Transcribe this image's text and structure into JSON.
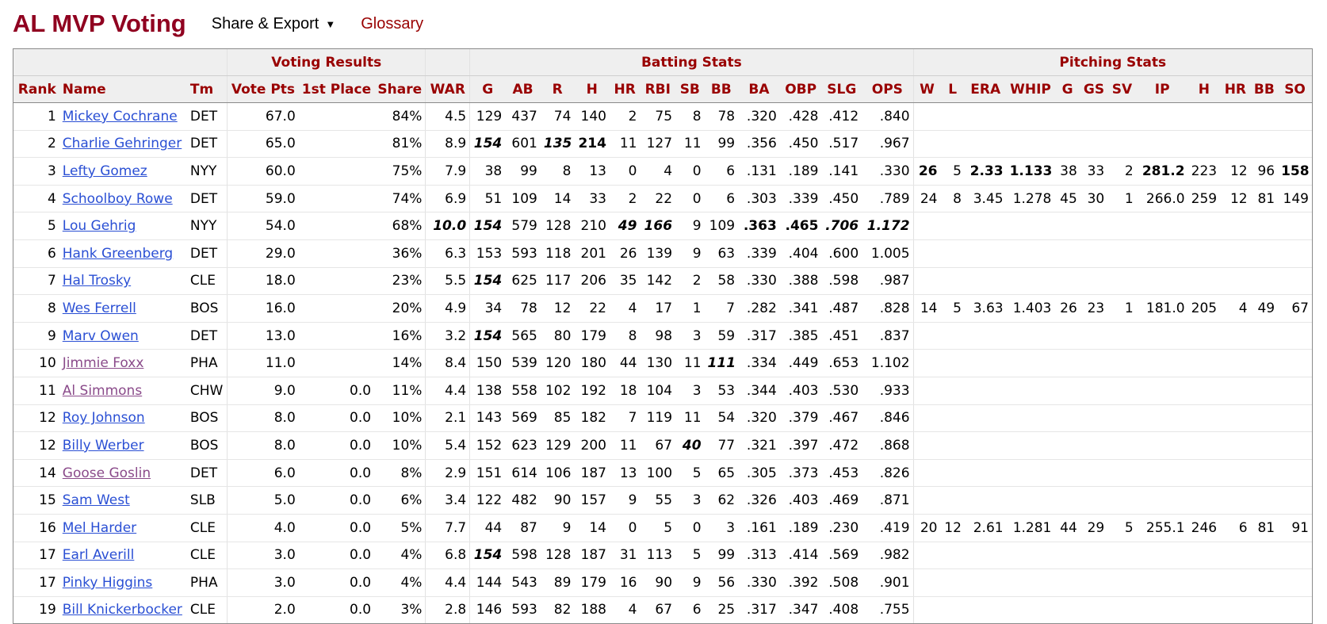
{
  "page": {
    "title": "AL MVP Voting",
    "share_label": "Share & Export",
    "glossary_label": "Glossary"
  },
  "groups": {
    "voting": "Voting Results",
    "batting": "Batting Stats",
    "pitching": "Pitching Stats"
  },
  "columns": [
    "Rank",
    "Name",
    "Tm",
    "Vote Pts",
    "1st Place",
    "Share",
    "WAR",
    "G",
    "AB",
    "R",
    "H",
    "HR",
    "RBI",
    "SB",
    "BB",
    "BA",
    "OBP",
    "SLG",
    "OPS",
    "W",
    "L",
    "ERA",
    "WHIP",
    "G",
    "GS",
    "SV",
    "IP",
    "H",
    "HR",
    "BB",
    "SO"
  ],
  "rows": [
    {
      "cells": [
        "1",
        "Mickey Cochrane",
        "DET",
        "67.0",
        "",
        "84%",
        "4.5",
        "129",
        "437",
        "74",
        "140",
        "2",
        "75",
        "8",
        "78",
        ".320",
        ".428",
        ".412",
        ".840",
        "",
        "",
        "",
        "",
        "",
        "",
        "",
        "",
        "",
        "",
        "",
        ""
      ],
      "style": {},
      "visited": false
    },
    {
      "cells": [
        "2",
        "Charlie Gehringer",
        "DET",
        "65.0",
        "",
        "81%",
        "8.9",
        "154",
        "601",
        "135",
        "214",
        "11",
        "127",
        "11",
        "99",
        ".356",
        ".450",
        ".517",
        ".967",
        "",
        "",
        "",
        "",
        "",
        "",
        "",
        "",
        "",
        "",
        "",
        ""
      ],
      "style": {
        "7": "lg",
        "9": "lg",
        "10": "lead"
      },
      "visited": false
    },
    {
      "cells": [
        "3",
        "Lefty Gomez",
        "NYY",
        "60.0",
        "",
        "75%",
        "7.9",
        "38",
        "99",
        "8",
        "13",
        "0",
        "4",
        "0",
        "6",
        ".131",
        ".189",
        ".141",
        ".330",
        "26",
        "5",
        "2.33",
        "1.133",
        "38",
        "33",
        "2",
        "281.2",
        "223",
        "12",
        "96",
        "158"
      ],
      "style": {
        "19": "lead",
        "21": "lead",
        "22": "lead",
        "26": "lead",
        "30": "lead"
      },
      "visited": false
    },
    {
      "cells": [
        "4",
        "Schoolboy Rowe",
        "DET",
        "59.0",
        "",
        "74%",
        "6.9",
        "51",
        "109",
        "14",
        "33",
        "2",
        "22",
        "0",
        "6",
        ".303",
        ".339",
        ".450",
        ".789",
        "24",
        "8",
        "3.45",
        "1.278",
        "45",
        "30",
        "1",
        "266.0",
        "259",
        "12",
        "81",
        "149"
      ],
      "style": {},
      "visited": false
    },
    {
      "cells": [
        "5",
        "Lou Gehrig",
        "NYY",
        "54.0",
        "",
        "68%",
        "10.0",
        "154",
        "579",
        "128",
        "210",
        "49",
        "166",
        "9",
        "109",
        ".363",
        ".465",
        ".706",
        "1.172",
        "",
        "",
        "",
        "",
        "",
        "",
        "",
        "",
        "",
        "",
        "",
        ""
      ],
      "style": {
        "6": "lg",
        "7": "lg",
        "11": "lg",
        "12": "lg",
        "15": "lead",
        "16": "lead",
        "17": "lg",
        "18": "lg"
      },
      "visited": false
    },
    {
      "cells": [
        "6",
        "Hank Greenberg",
        "DET",
        "29.0",
        "",
        "36%",
        "6.3",
        "153",
        "593",
        "118",
        "201",
        "26",
        "139",
        "9",
        "63",
        ".339",
        ".404",
        ".600",
        "1.005",
        "",
        "",
        "",
        "",
        "",
        "",
        "",
        "",
        "",
        "",
        "",
        ""
      ],
      "style": {},
      "visited": false
    },
    {
      "cells": [
        "7",
        "Hal Trosky",
        "CLE",
        "18.0",
        "",
        "23%",
        "5.5",
        "154",
        "625",
        "117",
        "206",
        "35",
        "142",
        "2",
        "58",
        ".330",
        ".388",
        ".598",
        ".987",
        "",
        "",
        "",
        "",
        "",
        "",
        "",
        "",
        "",
        "",
        "",
        ""
      ],
      "style": {
        "7": "lg"
      },
      "visited": false
    },
    {
      "cells": [
        "8",
        "Wes Ferrell",
        "BOS",
        "16.0",
        "",
        "20%",
        "4.9",
        "34",
        "78",
        "12",
        "22",
        "4",
        "17",
        "1",
        "7",
        ".282",
        ".341",
        ".487",
        ".828",
        "14",
        "5",
        "3.63",
        "1.403",
        "26",
        "23",
        "1",
        "181.0",
        "205",
        "4",
        "49",
        "67"
      ],
      "style": {},
      "visited": false
    },
    {
      "cells": [
        "9",
        "Marv Owen",
        "DET",
        "13.0",
        "",
        "16%",
        "3.2",
        "154",
        "565",
        "80",
        "179",
        "8",
        "98",
        "3",
        "59",
        ".317",
        ".385",
        ".451",
        ".837",
        "",
        "",
        "",
        "",
        "",
        "",
        "",
        "",
        "",
        "",
        "",
        ""
      ],
      "style": {
        "7": "lg"
      },
      "visited": false
    },
    {
      "cells": [
        "10",
        "Jimmie Foxx",
        "PHA",
        "11.0",
        "",
        "14%",
        "8.4",
        "150",
        "539",
        "120",
        "180",
        "44",
        "130",
        "11",
        "111",
        ".334",
        ".449",
        ".653",
        "1.102",
        "",
        "",
        "",
        "",
        "",
        "",
        "",
        "",
        "",
        "",
        "",
        ""
      ],
      "style": {
        "14": "lg"
      },
      "visited": true
    },
    {
      "cells": [
        "11",
        "Al Simmons",
        "CHW",
        "9.0",
        "0.0",
        "11%",
        "4.4",
        "138",
        "558",
        "102",
        "192",
        "18",
        "104",
        "3",
        "53",
        ".344",
        ".403",
        ".530",
        ".933",
        "",
        "",
        "",
        "",
        "",
        "",
        "",
        "",
        "",
        "",
        "",
        ""
      ],
      "style": {},
      "visited": true
    },
    {
      "cells": [
        "12",
        "Roy Johnson",
        "BOS",
        "8.0",
        "0.0",
        "10%",
        "2.1",
        "143",
        "569",
        "85",
        "182",
        "7",
        "119",
        "11",
        "54",
        ".320",
        ".379",
        ".467",
        ".846",
        "",
        "",
        "",
        "",
        "",
        "",
        "",
        "",
        "",
        "",
        "",
        ""
      ],
      "style": {},
      "visited": false
    },
    {
      "cells": [
        "12",
        "Billy Werber",
        "BOS",
        "8.0",
        "0.0",
        "10%",
        "5.4",
        "152",
        "623",
        "129",
        "200",
        "11",
        "67",
        "40",
        "77",
        ".321",
        ".397",
        ".472",
        ".868",
        "",
        "",
        "",
        "",
        "",
        "",
        "",
        "",
        "",
        "",
        "",
        ""
      ],
      "style": {
        "13": "lg"
      },
      "visited": false
    },
    {
      "cells": [
        "14",
        "Goose Goslin",
        "DET",
        "6.0",
        "0.0",
        "8%",
        "2.9",
        "151",
        "614",
        "106",
        "187",
        "13",
        "100",
        "5",
        "65",
        ".305",
        ".373",
        ".453",
        ".826",
        "",
        "",
        "",
        "",
        "",
        "",
        "",
        "",
        "",
        "",
        "",
        ""
      ],
      "style": {},
      "visited": true
    },
    {
      "cells": [
        "15",
        "Sam West",
        "SLB",
        "5.0",
        "0.0",
        "6%",
        "3.4",
        "122",
        "482",
        "90",
        "157",
        "9",
        "55",
        "3",
        "62",
        ".326",
        ".403",
        ".469",
        ".871",
        "",
        "",
        "",
        "",
        "",
        "",
        "",
        "",
        "",
        "",
        "",
        ""
      ],
      "style": {},
      "visited": false
    },
    {
      "cells": [
        "16",
        "Mel Harder",
        "CLE",
        "4.0",
        "0.0",
        "5%",
        "7.7",
        "44",
        "87",
        "9",
        "14",
        "0",
        "5",
        "0",
        "3",
        ".161",
        ".189",
        ".230",
        ".419",
        "20",
        "12",
        "2.61",
        "1.281",
        "44",
        "29",
        "5",
        "255.1",
        "246",
        "6",
        "81",
        "91"
      ],
      "style": {},
      "visited": false
    },
    {
      "cells": [
        "17",
        "Earl Averill",
        "CLE",
        "3.0",
        "0.0",
        "4%",
        "6.8",
        "154",
        "598",
        "128",
        "187",
        "31",
        "113",
        "5",
        "99",
        ".313",
        ".414",
        ".569",
        ".982",
        "",
        "",
        "",
        "",
        "",
        "",
        "",
        "",
        "",
        "",
        "",
        ""
      ],
      "style": {
        "7": "lg"
      },
      "visited": false
    },
    {
      "cells": [
        "17",
        "Pinky Higgins",
        "PHA",
        "3.0",
        "0.0",
        "4%",
        "4.4",
        "144",
        "543",
        "89",
        "179",
        "16",
        "90",
        "9",
        "56",
        ".330",
        ".392",
        ".508",
        ".901",
        "",
        "",
        "",
        "",
        "",
        "",
        "",
        "",
        "",
        "",
        "",
        ""
      ],
      "style": {},
      "visited": false
    },
    {
      "cells": [
        "19",
        "Bill Knickerbocker",
        "CLE",
        "2.0",
        "0.0",
        "3%",
        "2.8",
        "146",
        "593",
        "82",
        "188",
        "4",
        "67",
        "6",
        "25",
        ".317",
        ".347",
        ".408",
        ".755",
        "",
        "",
        "",
        "",
        "",
        "",
        "",
        "",
        "",
        "",
        "",
        ""
      ],
      "style": {},
      "visited": false
    }
  ]
}
